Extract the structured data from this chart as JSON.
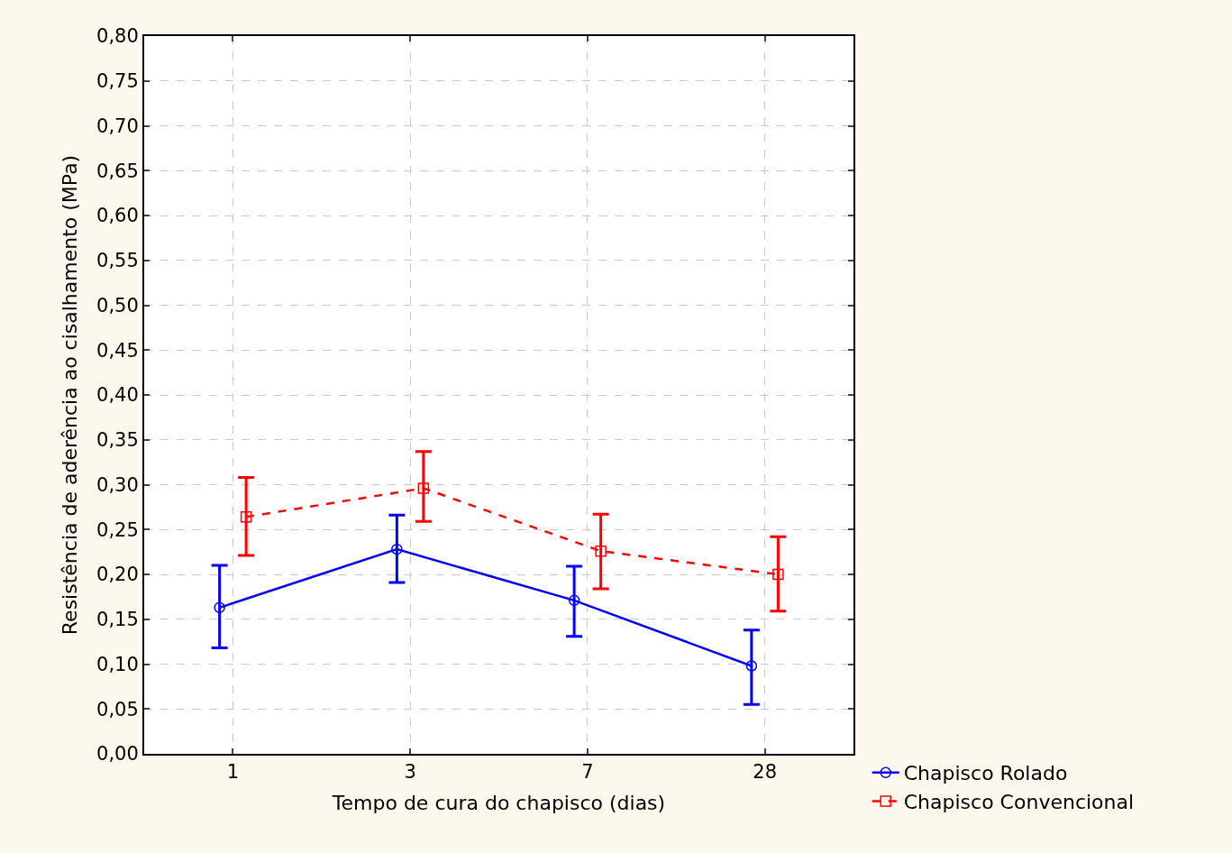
{
  "chart_data": {
    "type": "line",
    "xlabel": "Tempo de cura do chapisco (dias)",
    "ylabel": "Resistência de aderência ao cisalhamento (MPa)",
    "categories": [
      "1",
      "3",
      "7",
      "28"
    ],
    "ylim": [
      0,
      0.8
    ],
    "yticks": [
      {
        "value": 0,
        "label": "0,00"
      },
      {
        "value": 0.05,
        "label": "0,05"
      },
      {
        "value": 0.1,
        "label": "0,10"
      },
      {
        "value": 0.15,
        "label": "0,15"
      },
      {
        "value": 0.2,
        "label": "0,20"
      },
      {
        "value": 0.25,
        "label": "0,25"
      },
      {
        "value": 0.3,
        "label": "0,30"
      },
      {
        "value": 0.35,
        "label": "0,35"
      },
      {
        "value": 0.4,
        "label": "0,40"
      },
      {
        "value": 0.45,
        "label": "0,45"
      },
      {
        "value": 0.5,
        "label": "0,50"
      },
      {
        "value": 0.55,
        "label": "0,55"
      },
      {
        "value": 0.6,
        "label": "0,60"
      },
      {
        "value": 0.65,
        "label": "0,65"
      },
      {
        "value": 0.7,
        "label": "0,70"
      },
      {
        "value": 0.75,
        "label": "0,75"
      },
      {
        "value": 0.8,
        "label": "0,80"
      }
    ],
    "grid": true,
    "legend": "bottom right",
    "series": [
      {
        "name": "Chapisco Rolado",
        "color": "#0000ff",
        "marker": "circle",
        "line_style": "solid",
        "values": [
          0.163,
          0.228,
          0.171,
          0.098
        ],
        "errors": [
          [
            0.118,
            0.21
          ],
          [
            0.191,
            0.266
          ],
          [
            0.131,
            0.209
          ],
          [
            0.055,
            0.138
          ]
        ]
      },
      {
        "name": "Chapisco Convencional",
        "color": "#ff0000",
        "marker": "square",
        "line_style": "dashed",
        "values": [
          0.264,
          0.296,
          0.226,
          0.2
        ],
        "errors": [
          [
            0.221,
            0.308
          ],
          [
            0.259,
            0.337
          ],
          [
            0.184,
            0.267
          ],
          [
            0.159,
            0.242
          ]
        ]
      }
    ]
  }
}
